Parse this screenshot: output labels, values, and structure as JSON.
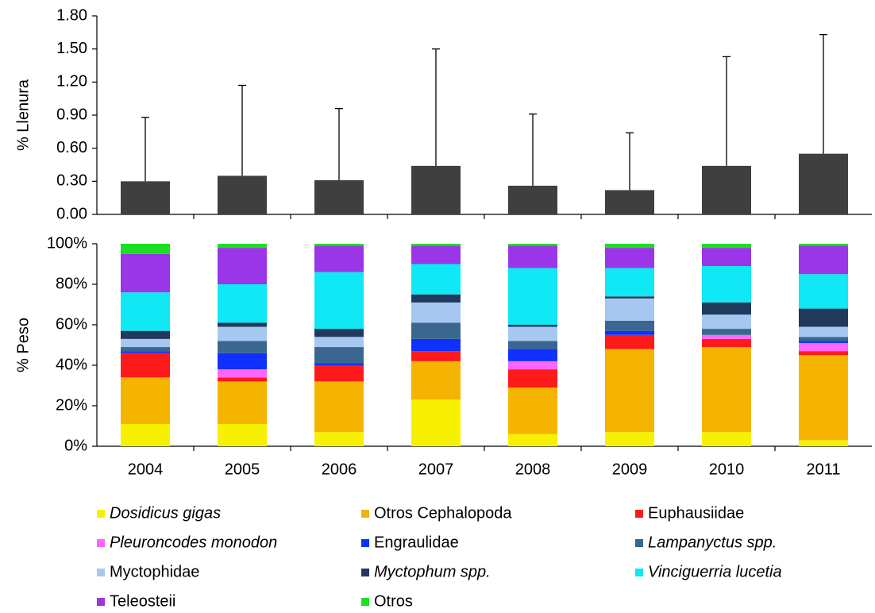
{
  "chart_data": [
    {
      "type": "bar_error",
      "y_label": "% Llenura",
      "color": "#3f3f3f",
      "values": [
        0.3,
        0.35,
        0.31,
        0.44,
        0.26,
        0.22,
        0.44,
        0.55
      ],
      "errors": [
        0.58,
        0.82,
        0.65,
        1.06,
        0.65,
        0.52,
        0.99,
        1.08
      ],
      "ylim": [
        0,
        1.8
      ],
      "yticks": [
        {
          "value": 0,
          "label": "0.00"
        },
        {
          "value": 0.3,
          "label": "0.30"
        },
        {
          "value": 0.6,
          "label": "0.60"
        },
        {
          "value": 0.9,
          "label": "0.90"
        },
        {
          "value": 1.2,
          "label": "1.20"
        },
        {
          "value": 1.5,
          "label": "1.50"
        },
        {
          "value": 1.8,
          "label": "1.80"
        }
      ]
    },
    {
      "type": "stacked_bar",
      "y_label": "% Peso",
      "categories": [
        "2004",
        "2005",
        "2006",
        "2007",
        "2008",
        "2009",
        "2010",
        "2011"
      ],
      "ylim": [
        0,
        100
      ],
      "yticks": [
        {
          "value": 0,
          "label": "0%"
        },
        {
          "value": 20,
          "label": "20%"
        },
        {
          "value": 40,
          "label": "40%"
        },
        {
          "value": 60,
          "label": "60%"
        },
        {
          "value": 80,
          "label": "80%"
        },
        {
          "value": 100,
          "label": "100%"
        }
      ],
      "series": [
        {
          "name": "Dosidicus gigas",
          "color": "#f7f000",
          "values": [
            11,
            11,
            7,
            23,
            6,
            7,
            7,
            3
          ]
        },
        {
          "name": "Otros Cephalopoda",
          "color": "#f5b400",
          "values": [
            23,
            21,
            25,
            19,
            23,
            41,
            42,
            42
          ]
        },
        {
          "name": "Euphausiidae",
          "color": "#ff1a1a",
          "values": [
            12,
            2,
            8,
            5,
            9,
            7,
            4,
            2
          ]
        },
        {
          "name": "Pleuroncodes monodon",
          "color": "#ff66ff",
          "values": [
            0,
            4,
            0,
            0,
            4,
            0,
            2,
            4
          ]
        },
        {
          "name": "Engraulidae",
          "color": "#1030ff",
          "values": [
            1,
            8,
            1,
            6,
            6,
            2,
            0,
            1
          ]
        },
        {
          "name": "Lampanyctus spp.",
          "color": "#3a6690",
          "values": [
            2,
            6,
            8,
            8,
            4,
            5,
            3,
            2
          ]
        },
        {
          "name": "Myctophidae",
          "color": "#a6c8f0",
          "values": [
            4,
            7,
            5,
            10,
            7,
            11,
            7,
            5
          ]
        },
        {
          "name": "Myctophum spp.",
          "color": "#1f3a5c",
          "values": [
            4,
            2,
            4,
            4,
            1,
            1,
            6,
            9
          ]
        },
        {
          "name": "Vinciguerria lucetia",
          "color": "#10e8f5",
          "values": [
            19,
            19,
            28,
            15,
            28,
            14,
            18,
            17
          ]
        },
        {
          "name": "Teleosteii",
          "color": "#9a35e8",
          "values": [
            19,
            18,
            13,
            9,
            11,
            10,
            9,
            14
          ]
        },
        {
          "name": "Otros",
          "color": "#1ae020",
          "values": [
            5,
            2,
            1,
            1,
            1,
            2,
            2,
            1
          ]
        }
      ]
    }
  ]
}
